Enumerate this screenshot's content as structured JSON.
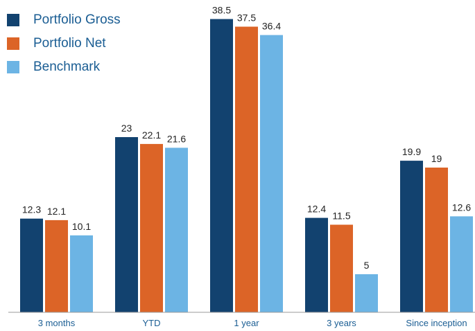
{
  "chart_data": {
    "type": "bar",
    "categories": [
      "3 months",
      "YTD",
      "1 year",
      "3 years",
      "Since inception"
    ],
    "series": [
      {
        "name": "Portfolio Gross",
        "color": "#12426f",
        "values": [
          12.3,
          23,
          38.5,
          12.4,
          19.9
        ]
      },
      {
        "name": "Portfolio Net",
        "color": "#dc6427",
        "values": [
          12.1,
          22.1,
          37.5,
          11.5,
          19
        ]
      },
      {
        "name": "Benchmark",
        "color": "#6cb4e4",
        "values": [
          10.1,
          21.6,
          36.4,
          5,
          12.6
        ]
      }
    ],
    "ylim": [
      0,
      41
    ],
    "grid": false,
    "legend_position": "top-left",
    "xlabel": "",
    "ylabel": ""
  }
}
